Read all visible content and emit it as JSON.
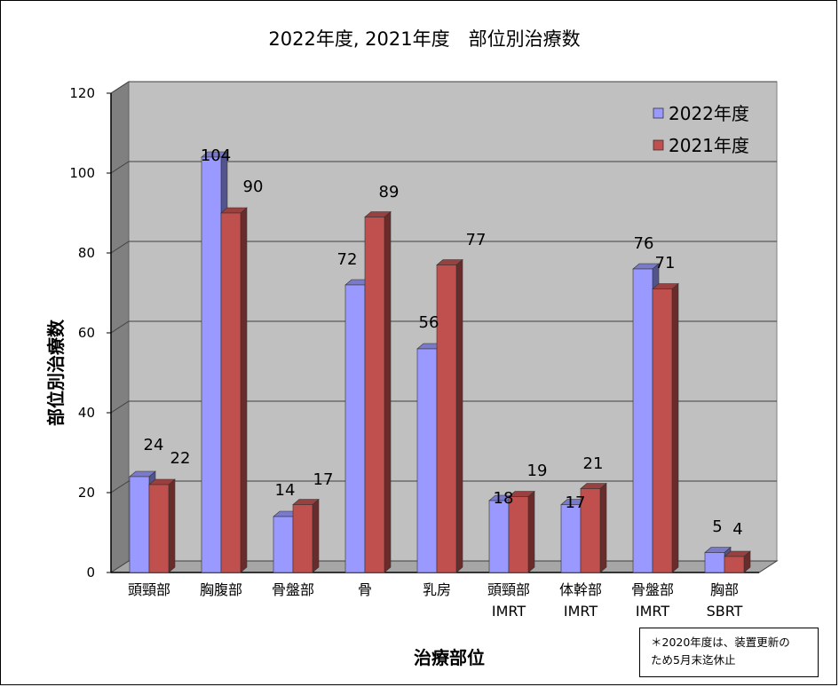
{
  "chart_data": {
    "type": "bar",
    "title": "2022年度, 2021年度　部位別治療数",
    "xlabel": "治療部位",
    "ylabel": "部位別治療数",
    "ylim": [
      0,
      120
    ],
    "yticks": [
      0,
      20,
      40,
      60,
      80,
      100,
      120
    ],
    "grid": true,
    "legend_position": "top-right",
    "categories": [
      [
        "頭頸部"
      ],
      [
        "胸腹部"
      ],
      [
        "骨盤部"
      ],
      [
        "骨"
      ],
      [
        "乳房"
      ],
      [
        "頭頸部",
        "IMRT"
      ],
      [
        "体幹部",
        "IMRT"
      ],
      [
        "骨盤部",
        "IMRT"
      ],
      [
        "胸部",
        "SBRT"
      ]
    ],
    "series": [
      {
        "name": "2022年度",
        "color": "#9999FF",
        "values": [
          24,
          104,
          14,
          72,
          56,
          18,
          17,
          76,
          5
        ]
      },
      {
        "name": "2021年度",
        "color": "#C0504D",
        "values": [
          22,
          90,
          17,
          89,
          77,
          19,
          21,
          71,
          4
        ]
      }
    ],
    "wall_color": "#C0C0C0"
  },
  "note": {
    "line1": "＊2020年度は、装置更新の",
    "line2": "ため5月末迄休止"
  }
}
